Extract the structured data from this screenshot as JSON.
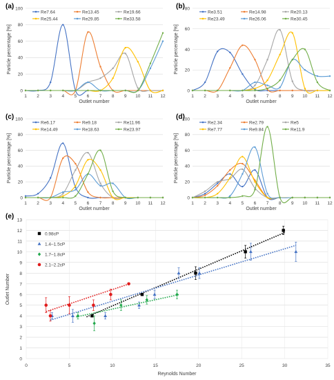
{
  "chart_data": [
    {
      "type": "line",
      "panel_label": "(a)",
      "xlabel": "Outlet number",
      "ylabel": "Particle percentage [%]",
      "x": [
        1,
        2,
        3,
        4,
        5,
        6,
        7,
        8,
        9,
        10,
        11,
        12
      ],
      "xlim": [
        1,
        12
      ],
      "ylim": [
        0,
        100
      ],
      "yticks": [
        0,
        20,
        40,
        60,
        80,
        100
      ],
      "grid": true,
      "legend": "top",
      "series": [
        {
          "name": "Re7.64",
          "color": "#4472c4",
          "values": [
            0,
            0,
            10,
            80,
            0,
            0,
            0,
            0,
            0,
            0,
            0,
            0
          ]
        },
        {
          "name": "Re13.45",
          "color": "#ed7d31",
          "values": [
            0,
            0,
            0,
            0,
            0,
            71,
            29,
            0,
            0,
            0,
            0,
            0
          ]
        },
        {
          "name": "Re19.66",
          "color": "#a5a5a5",
          "values": [
            0,
            0,
            0,
            0,
            0,
            10,
            15,
            27,
            45,
            3,
            0,
            0
          ]
        },
        {
          "name": "Re25.44",
          "color": "#ffc000",
          "values": [
            0,
            0,
            0,
            0,
            0,
            0,
            0,
            15,
            52,
            35,
            0,
            0
          ]
        },
        {
          "name": "Re29.85",
          "color": "#5b9bd5",
          "values": [
            0,
            0,
            0,
            0,
            0,
            10,
            0,
            0,
            0,
            0,
            27,
            60
          ]
        },
        {
          "name": "Re33.58",
          "color": "#70ad47",
          "values": [
            0,
            0,
            0,
            0,
            0,
            0,
            0,
            0,
            0,
            0,
            33,
            70
          ]
        }
      ]
    },
    {
      "type": "line",
      "panel_label": "(b)",
      "xlabel": "Outlet number",
      "ylabel": "Particle percentage [%]",
      "x": [
        1,
        2,
        3,
        4,
        5,
        6,
        7,
        8,
        9,
        10,
        11,
        12
      ],
      "xlim": [
        1,
        12
      ],
      "ylim": [
        0,
        80
      ],
      "yticks": [
        0,
        20,
        40,
        60,
        80
      ],
      "grid": true,
      "legend": "top",
      "series": [
        {
          "name": "Re3.51",
          "color": "#4472c4",
          "values": [
            0,
            8,
            38,
            37,
            16,
            1,
            0,
            0,
            0,
            0,
            0,
            0
          ]
        },
        {
          "name": "Re14.98",
          "color": "#ed7d31",
          "values": [
            0,
            0,
            0,
            22,
            44,
            30,
            1,
            0,
            0,
            0,
            0,
            0
          ]
        },
        {
          "name": "Re20.13",
          "color": "#a5a5a5",
          "values": [
            0,
            0,
            0,
            0,
            0,
            5,
            30,
            59,
            9,
            0,
            0,
            0
          ]
        },
        {
          "name": "Re23.49",
          "color": "#ffc000",
          "values": [
            0,
            0,
            0,
            0,
            0,
            2,
            10,
            35,
            56,
            2,
            0,
            0
          ]
        },
        {
          "name": "Re26.06",
          "color": "#5b9bd5",
          "values": [
            0,
            0,
            0,
            0,
            0,
            8,
            5,
            3,
            30,
            20,
            14,
            14
          ]
        },
        {
          "name": "Re30.45",
          "color": "#70ad47",
          "values": [
            0,
            0,
            0,
            0,
            0,
            0,
            2,
            10,
            30,
            40,
            8,
            0
          ]
        }
      ]
    },
    {
      "type": "line",
      "panel_label": "(c)",
      "xlabel": "Outlet number",
      "ylabel": "Particle percentage [%]",
      "x": [
        1,
        2,
        3,
        4,
        5,
        6,
        7,
        8,
        9,
        10,
        11,
        12
      ],
      "xlim": [
        1,
        12
      ],
      "ylim": [
        0,
        100
      ],
      "yticks": [
        0,
        20,
        40,
        60,
        80,
        100
      ],
      "grid": true,
      "legend": "top",
      "series": [
        {
          "name": "Re6.17",
          "color": "#4472c4",
          "values": [
            2,
            5,
            25,
            69,
            13,
            0,
            0,
            0,
            0,
            0,
            0,
            0
          ]
        },
        {
          "name": "Re9.18",
          "color": "#ed7d31",
          "values": [
            0,
            0,
            0,
            50,
            43,
            7,
            0,
            0,
            0,
            0,
            0,
            0
          ]
        },
        {
          "name": "Re11.96",
          "color": "#a5a5a5",
          "values": [
            0,
            0,
            0,
            5,
            35,
            57,
            18,
            0,
            0,
            0,
            0,
            0
          ]
        },
        {
          "name": "Re14.49",
          "color": "#ffc000",
          "values": [
            0,
            0,
            0,
            2,
            15,
            48,
            35,
            0,
            0,
            0,
            0,
            0
          ]
        },
        {
          "name": "Re18.63",
          "color": "#5b9bd5",
          "values": [
            0,
            0,
            0,
            7,
            10,
            30,
            15,
            18,
            0,
            0,
            0,
            0
          ]
        },
        {
          "name": "Re23.97",
          "color": "#70ad47",
          "values": [
            0,
            0,
            0,
            0,
            2,
            30,
            60,
            8,
            0,
            0,
            0,
            0
          ]
        }
      ]
    },
    {
      "type": "line",
      "panel_label": "(d)",
      "xlabel": "Outlet number",
      "ylabel": "Particle percentage [%]",
      "x": [
        1,
        2,
        3,
        4,
        5,
        6,
        7,
        8,
        9,
        10,
        11,
        12
      ],
      "xlim": [
        1,
        12
      ],
      "ylim": [
        0,
        100
      ],
      "yticks": [
        0,
        20,
        40,
        60,
        80,
        100
      ],
      "grid": true,
      "legend": "top",
      "series": [
        {
          "name": "Re2.34",
          "color": "#4472c4",
          "values": [
            0,
            5,
            18,
            30,
            14,
            35,
            0,
            0,
            0,
            0,
            0,
            0
          ]
        },
        {
          "name": "Re2.79",
          "color": "#ed7d31",
          "values": [
            0,
            3,
            15,
            35,
            43,
            22,
            0,
            0,
            0,
            0,
            0,
            0
          ]
        },
        {
          "name": "Re5",
          "color": "#a5a5a5",
          "values": [
            0,
            8,
            20,
            24,
            36,
            12,
            0,
            0,
            0,
            0,
            0,
            0
          ]
        },
        {
          "name": "Re7.77",
          "color": "#ffc000",
          "values": [
            0,
            0,
            5,
            25,
            52,
            20,
            0,
            0,
            0,
            0,
            0,
            0
          ]
        },
        {
          "name": "Re9.84",
          "color": "#5b9bd5",
          "values": [
            0,
            0,
            0,
            2,
            30,
            64,
            5,
            0,
            0,
            0,
            0,
            0
          ]
        },
        {
          "name": "Re11.9",
          "color": "#70ad47",
          "values": [
            0,
            0,
            0,
            0,
            2,
            10,
            90,
            0,
            0,
            0,
            0,
            0
          ]
        }
      ]
    },
    {
      "type": "scatter",
      "panel_label": "(e)",
      "xlabel": "Reynolds Number",
      "ylabel": "Outlet Number",
      "xlim": [
        0,
        35
      ],
      "xticks": [
        0,
        5,
        10,
        15,
        20,
        25,
        30,
        35
      ],
      "ylim": [
        0,
        13
      ],
      "yticks": [
        0,
        1,
        2,
        3,
        4,
        5,
        6,
        7,
        8,
        9,
        10,
        11,
        12,
        13
      ],
      "grid": true,
      "legend": "top-left",
      "trendlines": "dotted linear",
      "series": [
        {
          "name": "0.98cP",
          "color": "#000000",
          "marker": "square",
          "points": [
            [
              7.64,
              4
            ],
            [
              13.45,
              6
            ],
            [
              19.66,
              8
            ],
            [
              25.44,
              10
            ],
            [
              29.85,
              12
            ]
          ],
          "err": [
            0,
            0,
            0.6,
            0.6,
            0.4
          ],
          "trend": [
            [
              7,
              3.9
            ],
            [
              30,
              11.8
            ]
          ]
        },
        {
          "name": "1.4–1.5cP",
          "color": "#4472c4",
          "marker": "triangle",
          "points": [
            [
              3,
              4
            ],
            [
              5.4,
              4
            ],
            [
              9.18,
              4
            ],
            [
              13.1,
              5
            ],
            [
              14.9,
              6
            ],
            [
              17.7,
              8
            ],
            [
              20.1,
              8
            ],
            [
              26.06,
              10
            ],
            [
              31.3,
              10
            ]
          ],
          "err": [
            0.3,
            0.6,
            0.3,
            0.3,
            0.4,
            0.5,
            0.5,
            0.8,
            0.9
          ],
          "trend": [
            [
              2.8,
              3.6
            ],
            [
              31.3,
              10.6
            ]
          ]
        },
        {
          "name": "1.7–1.8cP",
          "color": "#22a84c",
          "marker": "diamond",
          "points": [
            [
              6,
              4
            ],
            [
              7.9,
              3.3
            ],
            [
              11,
              5
            ],
            [
              14,
              5.5
            ],
            [
              17.5,
              6
            ]
          ],
          "err": [
            0.3,
            0.7,
            0.5,
            0.4,
            0.4
          ],
          "trend": [
            [
              5.8,
              3.9
            ],
            [
              17.8,
              6
            ]
          ]
        },
        {
          "name": "2.1–2.2cP",
          "color": "#e01b1b",
          "marker": "circle",
          "points": [
            [
              2.3,
              5
            ],
            [
              2.8,
              4
            ],
            [
              5,
              5
            ],
            [
              7.8,
              5
            ],
            [
              9.8,
              6
            ],
            [
              11.9,
              7
            ]
          ],
          "err": [
            0.7,
            0.5,
            0.8,
            0.5,
            0.5,
            0.0
          ],
          "trend": [
            [
              2.3,
              4.4
            ],
            [
              12,
              7
            ]
          ]
        }
      ]
    }
  ]
}
